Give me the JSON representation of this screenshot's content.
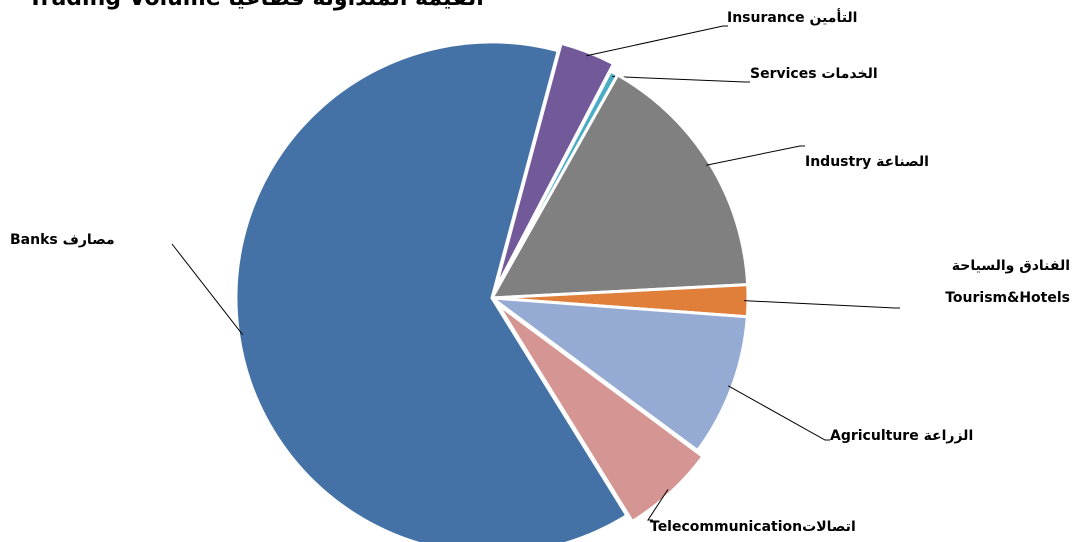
{
  "chart_data": {
    "type": "pie",
    "title": "Trading Volume  القيمة المتداولة قطاعياً",
    "categories": [
      "Insurance  التأمين",
      "Services  الخدمات",
      "Industry  الصناعة",
      "الفنادق والسياحة Tourism&Hotels",
      "Agriculture  الزراعة",
      "Telecommunicationاتصالات",
      "Banks  مصارف"
    ],
    "values": [
      3.5,
      0.5,
      16,
      2,
      9,
      6,
      63
    ],
    "colors": [
      "#72599a",
      "#4bacc6",
      "#808080",
      "#e07f3a",
      "#95abd4",
      "#d49593",
      "#4472a7"
    ]
  }
}
